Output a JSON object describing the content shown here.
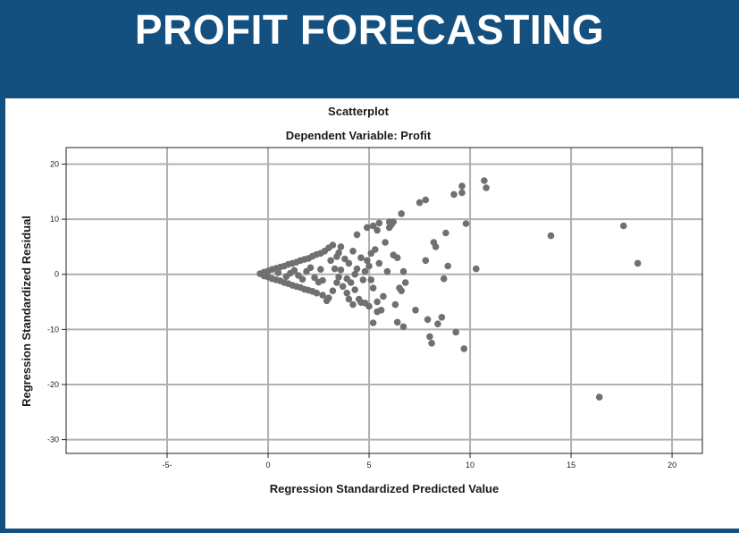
{
  "header": {
    "title": "PROFIT FORECASTING"
  },
  "chart_data": {
    "type": "scatter",
    "title": "Scatterplot",
    "subtitle": "Dependent Variable: Profit",
    "xlabel": "Regression Standardized Predicted Value",
    "ylabel": "Regression Standardized Residual",
    "xlim": [
      -10,
      21.5
    ],
    "ylim": [
      -32.5,
      23
    ],
    "x_ticks": [
      -5,
      0,
      5,
      10,
      15,
      20
    ],
    "x_tick_labels": [
      "-5-",
      "0",
      "5",
      "10",
      "15",
      "20"
    ],
    "y_ticks": [
      20,
      10,
      0,
      -10,
      -20,
      -30
    ],
    "y_tick_labels": [
      "20",
      "10",
      "0",
      "-10",
      "-20",
      "-30"
    ],
    "grid": true,
    "point_color": "#707070",
    "grid_color": "#b0b0b0",
    "series": [
      {
        "points": [
          [
            -0.4,
            0.1
          ],
          [
            -0.2,
            0.4
          ],
          [
            -0.2,
            -0.3
          ],
          [
            0,
            0.6
          ],
          [
            0,
            -0.5
          ],
          [
            0.2,
            0.9
          ],
          [
            0.2,
            -0.8
          ],
          [
            0.4,
            1.1
          ],
          [
            0.4,
            -1.0
          ],
          [
            0.6,
            1.3
          ],
          [
            0.6,
            -1.2
          ],
          [
            0.8,
            1.5
          ],
          [
            0.8,
            -1.5
          ],
          [
            1.0,
            1.8
          ],
          [
            1.0,
            -1.7
          ],
          [
            1.2,
            2.0
          ],
          [
            1.2,
            -2.0
          ],
          [
            1.4,
            2.2
          ],
          [
            1.4,
            -2.2
          ],
          [
            1.6,
            2.5
          ],
          [
            1.6,
            -2.4
          ],
          [
            1.8,
            2.7
          ],
          [
            1.8,
            -2.7
          ],
          [
            2.0,
            2.9
          ],
          [
            2.0,
            -2.9
          ],
          [
            2.2,
            3.3
          ],
          [
            2.2,
            -3.1
          ],
          [
            2.4,
            3.6
          ],
          [
            2.4,
            -3.4
          ],
          [
            0.5,
            0.3
          ],
          [
            0.9,
            -0.4
          ],
          [
            1.3,
            0.7
          ],
          [
            1.7,
            -0.9
          ],
          [
            2.1,
            1.2
          ],
          [
            2.5,
            -1.4
          ],
          [
            1.1,
            0.2
          ],
          [
            1.5,
            -0.2
          ],
          [
            1.9,
            0.5
          ],
          [
            2.3,
            -0.6
          ],
          [
            2.6,
            0.9
          ],
          [
            2.7,
            -1.1
          ],
          [
            3.0,
            4.8
          ],
          [
            3.2,
            5.3
          ],
          [
            3.4,
            3.2
          ],
          [
            3.6,
            5.0
          ],
          [
            3.1,
            2.5
          ],
          [
            3.3,
            1.0
          ],
          [
            3.5,
            -0.5
          ],
          [
            3.7,
            -2.2
          ],
          [
            3.9,
            -3.4
          ],
          [
            3.0,
            -4.3
          ],
          [
            3.2,
            -3.0
          ],
          [
            3.4,
            -1.5
          ],
          [
            2.9,
            -4.8
          ],
          [
            2.8,
            4.2
          ],
          [
            2.6,
            3.8
          ],
          [
            2.7,
            -3.8
          ],
          [
            3.8,
            2.8
          ],
          [
            3.6,
            0.8
          ],
          [
            3.9,
            -0.8
          ],
          [
            3.5,
            3.9
          ],
          [
            4.0,
            2.0
          ],
          [
            4.1,
            -1.5
          ],
          [
            4.2,
            4.2
          ],
          [
            4.3,
            -2.8
          ],
          [
            4.4,
            1.0
          ],
          [
            4.5,
            -4.5
          ],
          [
            4.6,
            3.0
          ],
          [
            4.7,
            -1.0
          ],
          [
            4.8,
            -5.2
          ],
          [
            4.4,
            7.2
          ],
          [
            4.6,
            -5.1
          ],
          [
            4.2,
            -5.5
          ],
          [
            4.9,
            2.5
          ],
          [
            4.0,
            -4.5
          ],
          [
            4.3,
            0.0
          ],
          [
            4.8,
            0.5
          ],
          [
            5.0,
            1.5
          ],
          [
            5.1,
            3.8
          ],
          [
            5.2,
            -2.5
          ],
          [
            5.3,
            4.5
          ],
          [
            5.4,
            -5.0
          ],
          [
            5.5,
            2.0
          ],
          [
            5.6,
            -6.5
          ],
          [
            5.8,
            5.8
          ],
          [
            5.0,
            -5.8
          ],
          [
            5.2,
            8.8
          ],
          [
            5.4,
            8.0
          ],
          [
            5.5,
            9.3
          ],
          [
            5.2,
            -8.8
          ],
          [
            5.4,
            -6.8
          ],
          [
            5.7,
            -4.0
          ],
          [
            5.9,
            0.5
          ],
          [
            4.9,
            8.5
          ],
          [
            5.1,
            -1.0
          ],
          [
            6.0,
            9.5
          ],
          [
            6.1,
            9.0
          ],
          [
            6.0,
            8.5
          ],
          [
            6.2,
            9.5
          ],
          [
            6.4,
            3.0
          ],
          [
            6.5,
            -2.5
          ],
          [
            6.6,
            11.0
          ],
          [
            6.7,
            0.5
          ],
          [
            6.4,
            -8.7
          ],
          [
            6.7,
            -9.5
          ],
          [
            6.6,
            -3.0
          ],
          [
            6.8,
            -1.5
          ],
          [
            6.3,
            -5.5
          ],
          [
            6.2,
            3.5
          ],
          [
            7.3,
            -6.5
          ],
          [
            7.5,
            13.0
          ],
          [
            7.8,
            13.5
          ],
          [
            7.8,
            2.5
          ],
          [
            7.9,
            -8.2
          ],
          [
            8.0,
            -11.3
          ],
          [
            8.1,
            -12.5
          ],
          [
            8.2,
            5.8
          ],
          [
            8.3,
            5.0
          ],
          [
            8.4,
            -9.0
          ],
          [
            8.6,
            -7.8
          ],
          [
            8.7,
            -0.8
          ],
          [
            8.8,
            7.5
          ],
          [
            8.9,
            1.5
          ],
          [
            9.2,
            14.5
          ],
          [
            9.3,
            -10.5
          ],
          [
            9.6,
            16.0
          ],
          [
            9.6,
            14.8
          ],
          [
            9.7,
            -13.5
          ],
          [
            9.8,
            9.2
          ],
          [
            10.3,
            1.0
          ],
          [
            10.7,
            17.0
          ],
          [
            10.8,
            15.7
          ],
          [
            14.0,
            7.0
          ],
          [
            16.4,
            -22.3
          ],
          [
            17.6,
            8.8
          ],
          [
            18.3,
            2.0
          ]
        ]
      }
    ]
  }
}
